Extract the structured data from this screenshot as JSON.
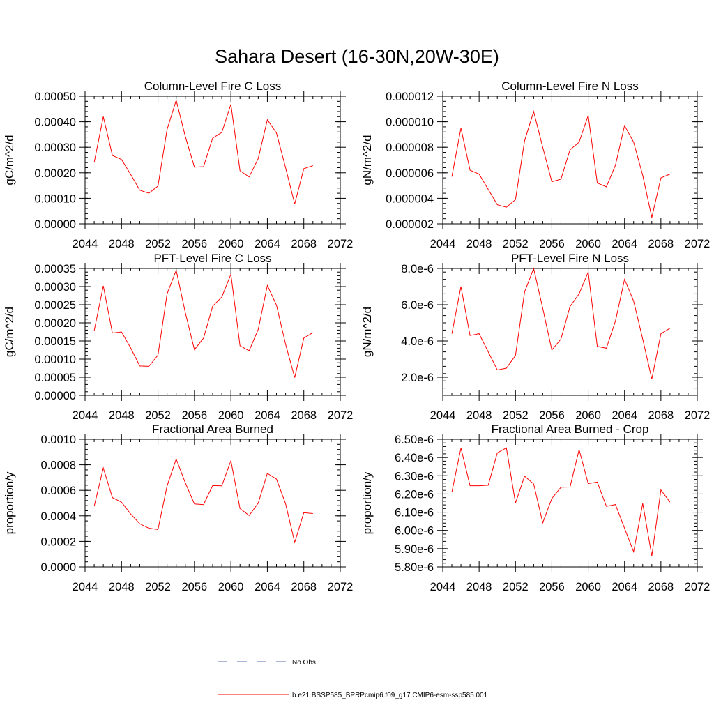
{
  "figure_title": "Sahara Desert (16-30N,20W-30E)",
  "colors": {
    "model_line": "#ff0000",
    "obs_line": "#5a6fb0",
    "axis": "#000000"
  },
  "legend": {
    "obs_label": "No Obs",
    "model_label": "b.e21.BSSP585_BPRPcmip6.f09_g17.CMIP6-esm-ssp585.001"
  },
  "chart_data": [
    {
      "type": "line",
      "title": "Column-Level Fire C Loss",
      "ylabel": "gC/m^2/d",
      "xlim": [
        2044,
        2072
      ],
      "ylim": [
        0,
        0.0005
      ],
      "x_ticks": [
        2044,
        2048,
        2052,
        2056,
        2060,
        2064,
        2068,
        2072
      ],
      "x_tick_labels": [
        "2044",
        "2048",
        "2052",
        "2056",
        "2060",
        "2064",
        "2068",
        "2072"
      ],
      "y_ticks": [
        0,
        0.0001,
        0.0002,
        0.0003,
        0.0004,
        0.0005
      ],
      "y_tick_labels": [
        "0.00000",
        "0.00010",
        "0.00020",
        "0.00030",
        "0.00040",
        "0.00050"
      ],
      "x": [
        2045,
        2046,
        2047,
        2048,
        2049,
        2050,
        2051,
        2052,
        2053,
        2054,
        2055,
        2056,
        2057,
        2058,
        2059,
        2060,
        2061,
        2062,
        2063,
        2064,
        2065,
        2066,
        2067,
        2068,
        2069
      ],
      "series": [
        {
          "values": [
            0.00024,
            0.00042,
            0.000268,
            0.000252,
            0.000194,
            0.000132,
            0.00012,
            0.000148,
            0.00037,
            0.000484,
            0.000342,
            0.000222,
            0.000224,
            0.000336,
            0.000358,
            0.000468,
            0.000208,
            0.000184,
            0.000256,
            0.000408,
            0.000356,
            0.00022,
            7.8e-05,
            0.000216,
            0.000228
          ]
        }
      ]
    },
    {
      "type": "line",
      "title": "Column-Level Fire N Loss",
      "ylabel": "gN/m^2/d",
      "xlim": [
        2044,
        2072
      ],
      "ylim": [
        2e-06,
        1.2e-05
      ],
      "x_ticks": [
        2044,
        2048,
        2052,
        2056,
        2060,
        2064,
        2068,
        2072
      ],
      "x_tick_labels": [
        "2044",
        "2048",
        "2052",
        "2056",
        "2060",
        "2064",
        "2068",
        "2072"
      ],
      "y_ticks": [
        2e-06,
        4e-06,
        6e-06,
        8e-06,
        1e-05,
        1.2e-05
      ],
      "y_tick_labels": [
        "0.000002",
        "0.000004",
        "0.000006",
        "0.000008",
        "0.000010",
        "0.000012"
      ],
      "x": [
        2045,
        2046,
        2047,
        2048,
        2049,
        2050,
        2051,
        2052,
        2053,
        2054,
        2055,
        2056,
        2057,
        2058,
        2059,
        2060,
        2061,
        2062,
        2063,
        2064,
        2065,
        2066,
        2067,
        2068,
        2069
      ],
      "series": [
        {
          "values": [
            5.7e-06,
            9.5e-06,
            6.2e-06,
            5.9e-06,
            4.7e-06,
            3.5e-06,
            3.3e-06,
            3.9e-06,
            8.5e-06,
            1.08e-05,
            8e-06,
            5.3e-06,
            5.5e-06,
            7.8e-06,
            8.4e-06,
            1.05e-05,
            5.2e-06,
            4.9e-06,
            6.6e-06,
            9.7e-06,
            8.4e-06,
            5.8e-06,
            2.5e-06,
            5.6e-06,
            5.9e-06
          ]
        }
      ]
    },
    {
      "type": "line",
      "title": "PFT-Level Fire C Loss",
      "ylabel": "gC/m^2/d",
      "xlim": [
        2044,
        2072
      ],
      "ylim": [
        0,
        0.00035
      ],
      "x_ticks": [
        2044,
        2048,
        2052,
        2056,
        2060,
        2064,
        2068,
        2072
      ],
      "x_tick_labels": [
        "2044",
        "2048",
        "2052",
        "2056",
        "2060",
        "2064",
        "2068",
        "2072"
      ],
      "y_ticks": [
        0,
        5e-05,
        0.0001,
        0.00015,
        0.0002,
        0.00025,
        0.0003,
        0.00035
      ],
      "y_tick_labels": [
        "0.00000",
        "0.00005",
        "0.00010",
        "0.00015",
        "0.00020",
        "0.00025",
        "0.00030",
        "0.00035"
      ],
      "x": [
        2045,
        2046,
        2047,
        2048,
        2049,
        2050,
        2051,
        2052,
        2053,
        2054,
        2055,
        2056,
        2057,
        2058,
        2059,
        2060,
        2061,
        2062,
        2063,
        2064,
        2065,
        2066,
        2067,
        2068,
        2069
      ],
      "series": [
        {
          "values": [
            0.000178,
            0.000302,
            0.000172,
            0.000175,
            0.000131,
            8.1e-05,
            8e-05,
            0.000111,
            0.00028,
            0.000345,
            0.000228,
            0.000126,
            0.000158,
            0.000246,
            0.000271,
            0.000334,
            0.000137,
            0.000123,
            0.000182,
            0.000303,
            0.000249,
            0.000141,
            4.9e-05,
            0.000158,
            0.000173
          ]
        }
      ]
    },
    {
      "type": "line",
      "title": "PFT-Level Fire N Loss",
      "ylabel": "gN/m^2/d",
      "xlim": [
        2044,
        2072
      ],
      "ylim": [
        1e-06,
        8e-06
      ],
      "x_ticks": [
        2044,
        2048,
        2052,
        2056,
        2060,
        2064,
        2068,
        2072
      ],
      "x_tick_labels": [
        "2044",
        "2048",
        "2052",
        "2056",
        "2060",
        "2064",
        "2068",
        "2072"
      ],
      "y_ticks": [
        2e-06,
        4e-06,
        6e-06,
        8e-06
      ],
      "y_tick_labels": [
        "2.0e-6",
        "4.0e-6",
        "6.0e-6",
        "8.0e-6"
      ],
      "x": [
        2045,
        2046,
        2047,
        2048,
        2049,
        2050,
        2051,
        2052,
        2053,
        2054,
        2055,
        2056,
        2057,
        2058,
        2059,
        2060,
        2061,
        2062,
        2063,
        2064,
        2065,
        2066,
        2067,
        2068,
        2069
      ],
      "series": [
        {
          "values": [
            4.4e-06,
            7e-06,
            4.3e-06,
            4.4e-06,
            3.4e-06,
            2.4e-06,
            2.5e-06,
            3.2e-06,
            6.7e-06,
            8e-06,
            5.8e-06,
            3.5e-06,
            4.1e-06,
            5.9e-06,
            6.6e-06,
            7.8e-06,
            3.7e-06,
            3.6e-06,
            5.1e-06,
            7.4e-06,
            6.2e-06,
            4.1e-06,
            1.9e-06,
            4.4e-06,
            4.7e-06
          ]
        }
      ]
    },
    {
      "type": "line",
      "title": "Fractional Area Burned",
      "ylabel": "proportion/y",
      "xlim": [
        2044,
        2072
      ],
      "ylim": [
        0,
        0.001
      ],
      "x_ticks": [
        2044,
        2048,
        2052,
        2056,
        2060,
        2064,
        2068,
        2072
      ],
      "x_tick_labels": [
        "2044",
        "2048",
        "2052",
        "2056",
        "2060",
        "2064",
        "2068",
        "2072"
      ],
      "y_ticks": [
        0,
        0.0002,
        0.0004,
        0.0006,
        0.0008,
        0.001
      ],
      "y_tick_labels": [
        "0.0000",
        "0.0002",
        "0.0004",
        "0.0006",
        "0.0008",
        "0.0010"
      ],
      "x": [
        2045,
        2046,
        2047,
        2048,
        2049,
        2050,
        2051,
        2052,
        2053,
        2054,
        2055,
        2056,
        2057,
        2058,
        2059,
        2060,
        2061,
        2062,
        2063,
        2064,
        2065,
        2066,
        2067,
        2068,
        2069
      ],
      "series": [
        {
          "values": [
            0.000475,
            0.000775,
            0.000543,
            0.000507,
            0.000415,
            0.000338,
            0.000303,
            0.000293,
            0.000635,
            0.000845,
            0.000658,
            0.000493,
            0.000488,
            0.000637,
            0.000635,
            0.000832,
            0.000457,
            0.000403,
            0.0005,
            0.000733,
            0.000688,
            0.000495,
            0.000192,
            0.000425,
            0.000418
          ]
        }
      ]
    },
    {
      "type": "line",
      "title": "Fractional Area Burned - Crop",
      "ylabel": "proportion/y",
      "xlim": [
        2044,
        2072
      ],
      "ylim": [
        5.8e-06,
        6.5e-06
      ],
      "x_ticks": [
        2044,
        2048,
        2052,
        2056,
        2060,
        2064,
        2068,
        2072
      ],
      "x_tick_labels": [
        "2044",
        "2048",
        "2052",
        "2056",
        "2060",
        "2064",
        "2068",
        "2072"
      ],
      "y_ticks": [
        5.8e-06,
        5.9e-06,
        6e-06,
        6.1e-06,
        6.2e-06,
        6.3e-06,
        6.4e-06,
        6.5e-06
      ],
      "y_tick_labels": [
        "5.80e-6",
        "5.90e-6",
        "6.00e-6",
        "6.10e-6",
        "6.20e-6",
        "6.30e-6",
        "6.40e-6",
        "6.50e-6"
      ],
      "x": [
        2045,
        2046,
        2047,
        2048,
        2049,
        2050,
        2051,
        2052,
        2053,
        2054,
        2055,
        2056,
        2057,
        2058,
        2059,
        2060,
        2061,
        2062,
        2063,
        2064,
        2065,
        2066,
        2067,
        2068,
        2069
      ],
      "series": [
        {
          "values": [
            6.21e-06,
            6.452e-06,
            6.245e-06,
            6.245e-06,
            6.248e-06,
            6.425e-06,
            6.453e-06,
            6.15e-06,
            6.298e-06,
            6.255e-06,
            6.042e-06,
            6.175e-06,
            6.237e-06,
            6.238e-06,
            6.443e-06,
            6.257e-06,
            6.265e-06,
            6.132e-06,
            6.142e-06,
            6.012e-06,
            5.883e-06,
            6.148e-06,
            5.86e-06,
            6.222e-06,
            6.155e-06
          ]
        }
      ]
    }
  ]
}
